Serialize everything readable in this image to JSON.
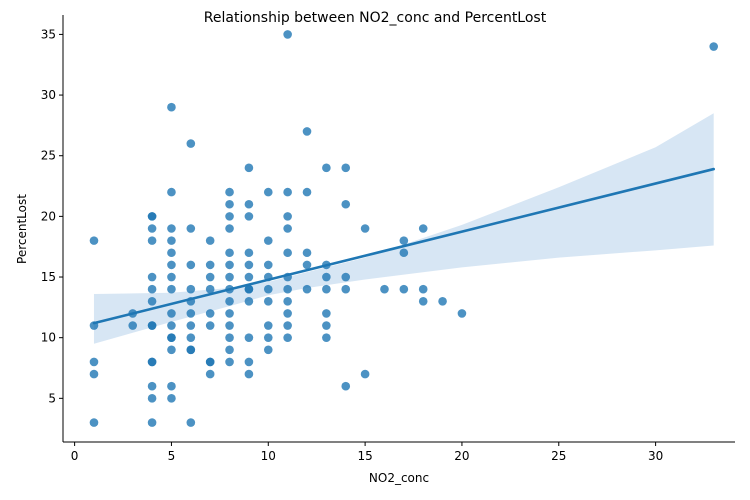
{
  "chart_data": {
    "type": "scatter",
    "title": "Relationship between NO2_conc and PercentLost",
    "xlabel": "NO2_conc",
    "ylabel": "PercentLost",
    "xlim": [
      -0.6,
      34.1
    ],
    "ylim": [
      1.4,
      36.6
    ],
    "xticks": [
      0,
      5,
      10,
      15,
      20,
      25,
      30
    ],
    "yticks": [
      5,
      10,
      15,
      20,
      25,
      30,
      35
    ],
    "grid": false,
    "legend": "none",
    "colors": {
      "points": "#1f77b4",
      "line": "#1f77b4",
      "band": "#c6dbef"
    },
    "points": [
      [
        1,
        18
      ],
      [
        1,
        11
      ],
      [
        1,
        8
      ],
      [
        1,
        7
      ],
      [
        1,
        3
      ],
      [
        3,
        12
      ],
      [
        3,
        11
      ],
      [
        4,
        20
      ],
      [
        4,
        20
      ],
      [
        4,
        19
      ],
      [
        4,
        18
      ],
      [
        4,
        15
      ],
      [
        4,
        14
      ],
      [
        4,
        13
      ],
      [
        4,
        11
      ],
      [
        4,
        11
      ],
      [
        4,
        8
      ],
      [
        4,
        8
      ],
      [
        4,
        6
      ],
      [
        4,
        5
      ],
      [
        4,
        3
      ],
      [
        5,
        29
      ],
      [
        5,
        22
      ],
      [
        5,
        19
      ],
      [
        5,
        18
      ],
      [
        5,
        17
      ],
      [
        5,
        16
      ],
      [
        5,
        15
      ],
      [
        5,
        14
      ],
      [
        5,
        12
      ],
      [
        5,
        11
      ],
      [
        5,
        10
      ],
      [
        5,
        10
      ],
      [
        5,
        9
      ],
      [
        5,
        6
      ],
      [
        5,
        5
      ],
      [
        6,
        26
      ],
      [
        6,
        19
      ],
      [
        6,
        16
      ],
      [
        6,
        14
      ],
      [
        6,
        13
      ],
      [
        6,
        12
      ],
      [
        6,
        11
      ],
      [
        6,
        10
      ],
      [
        6,
        9
      ],
      [
        6,
        9
      ],
      [
        6,
        3
      ],
      [
        7,
        18
      ],
      [
        7,
        16
      ],
      [
        7,
        15
      ],
      [
        7,
        14
      ],
      [
        7,
        12
      ],
      [
        7,
        11
      ],
      [
        7,
        8
      ],
      [
        7,
        8
      ],
      [
        7,
        7
      ],
      [
        8,
        22
      ],
      [
        8,
        21
      ],
      [
        8,
        20
      ],
      [
        8,
        19
      ],
      [
        8,
        17
      ],
      [
        8,
        16
      ],
      [
        8,
        15
      ],
      [
        8,
        14
      ],
      [
        8,
        13
      ],
      [
        8,
        12
      ],
      [
        8,
        11
      ],
      [
        8,
        10
      ],
      [
        8,
        9
      ],
      [
        8,
        8
      ],
      [
        9,
        24
      ],
      [
        9,
        21
      ],
      [
        9,
        20
      ],
      [
        9,
        17
      ],
      [
        9,
        16
      ],
      [
        9,
        15
      ],
      [
        9,
        14
      ],
      [
        9,
        14
      ],
      [
        9,
        13
      ],
      [
        9,
        10
      ],
      [
        9,
        8
      ],
      [
        9,
        7
      ],
      [
        10,
        22
      ],
      [
        10,
        18
      ],
      [
        10,
        16
      ],
      [
        10,
        15
      ],
      [
        10,
        14
      ],
      [
        10,
        13
      ],
      [
        10,
        11
      ],
      [
        10,
        10
      ],
      [
        10,
        9
      ],
      [
        11,
        35
      ],
      [
        11,
        22
      ],
      [
        11,
        20
      ],
      [
        11,
        19
      ],
      [
        11,
        17
      ],
      [
        11,
        15
      ],
      [
        11,
        14
      ],
      [
        11,
        13
      ],
      [
        11,
        12
      ],
      [
        11,
        11
      ],
      [
        11,
        10
      ],
      [
        12,
        27
      ],
      [
        12,
        22
      ],
      [
        12,
        17
      ],
      [
        12,
        16
      ],
      [
        12,
        14
      ],
      [
        13,
        24
      ],
      [
        13,
        16
      ],
      [
        13,
        15
      ],
      [
        13,
        14
      ],
      [
        13,
        12
      ],
      [
        13,
        11
      ],
      [
        13,
        10
      ],
      [
        14,
        24
      ],
      [
        14,
        21
      ],
      [
        14,
        15
      ],
      [
        14,
        14
      ],
      [
        14,
        6
      ],
      [
        15,
        19
      ],
      [
        15,
        7
      ],
      [
        16,
        14
      ],
      [
        17,
        18
      ],
      [
        17,
        17
      ],
      [
        17,
        14
      ],
      [
        18,
        19
      ],
      [
        18,
        14
      ],
      [
        18,
        13
      ],
      [
        19,
        13
      ],
      [
        20,
        12
      ],
      [
        33,
        34
      ]
    ],
    "regression": {
      "x_range": [
        1,
        33
      ],
      "y_start": 11.2,
      "y_end": 23.9,
      "ci_lower": [
        [
          1,
          9.5
        ],
        [
          5,
          11.3
        ],
        [
          8,
          12.6
        ],
        [
          10,
          13.5
        ],
        [
          12,
          14.1
        ],
        [
          15,
          14.8
        ],
        [
          20,
          15.8
        ],
        [
          25,
          16.6
        ],
        [
          30,
          17.2
        ],
        [
          33,
          17.6
        ]
      ],
      "ci_upper": [
        [
          1,
          13.6
        ],
        [
          5,
          13.7
        ],
        [
          8,
          14.1
        ],
        [
          10,
          14.6
        ],
        [
          12,
          15.4
        ],
        [
          15,
          16.6
        ],
        [
          20,
          19.3
        ],
        [
          25,
          22.4
        ],
        [
          30,
          25.7
        ],
        [
          33,
          28.5
        ]
      ]
    }
  }
}
